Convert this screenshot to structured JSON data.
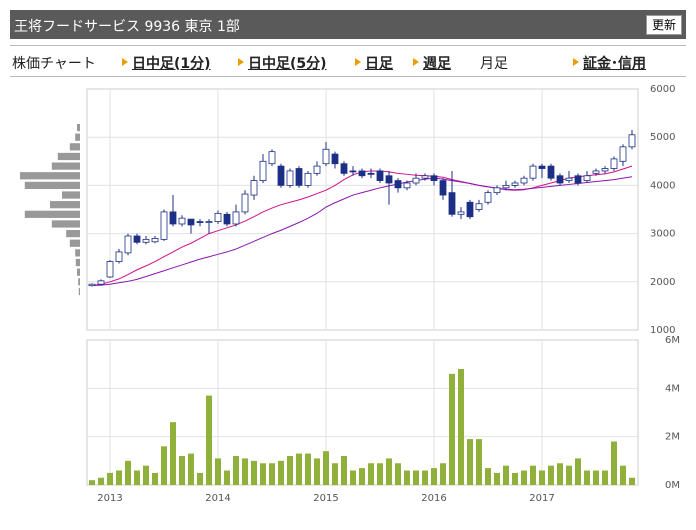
{
  "header": {
    "title": "王将フードサービス 9936 東京 1部",
    "button": "更新"
  },
  "tabs": [
    "株価チャート",
    "日中足(1分)",
    "日中足(5分)",
    "日足",
    "週足",
    "月足",
    "証金･信用"
  ],
  "chart_data": {
    "type": "candlestick",
    "categories": [
      null,
      null,
      "2013",
      null,
      null,
      null,
      null,
      null,
      null,
      null,
      null,
      null,
      null,
      null,
      "2014",
      null,
      null,
      null,
      null,
      null,
      null,
      null,
      null,
      null,
      null,
      null,
      "2015",
      null,
      null,
      null,
      null,
      null,
      null,
      null,
      null,
      null,
      null,
      null,
      "2016",
      null,
      null,
      null,
      null,
      null,
      null,
      null,
      null,
      null,
      null,
      null,
      "2017",
      null,
      null,
      null,
      null,
      null,
      null,
      null,
      null,
      null,
      null
    ],
    "open": [
      1920,
      1950,
      2100,
      2420,
      2600,
      2950,
      2820,
      2830,
      2880,
      3450,
      3200,
      3300,
      3250,
      3230,
      3250,
      3400,
      3200,
      3450,
      3800,
      4100,
      4450,
      4400,
      4000,
      4350,
      4000,
      4250,
      4450,
      4650,
      4450,
      4300,
      4300,
      4250,
      4300,
      4200,
      4100,
      3950,
      4050,
      4150,
      4200,
      4100,
      3850,
      3400,
      3650,
      3500,
      3650,
      3850,
      3950,
      4000,
      4050,
      4150,
      4400,
      4400,
      4200,
      4100,
      4200,
      4100,
      4250,
      4300,
      4350,
      4500,
      4800
    ],
    "high": [
      1970,
      2050,
      2450,
      2680,
      3000,
      3000,
      2950,
      2950,
      3500,
      3800,
      3380,
      3300,
      3300,
      3300,
      3480,
      3450,
      3600,
      3900,
      4200,
      4650,
      4750,
      4450,
      4350,
      4400,
      4300,
      4500,
      4900,
      4700,
      4500,
      4400,
      4350,
      4350,
      4350,
      4300,
      4150,
      4100,
      4250,
      4250,
      4250,
      4150,
      4300,
      3550,
      3700,
      3700,
      3900,
      4000,
      4100,
      4100,
      4200,
      4450,
      4450,
      4450,
      4250,
      4300,
      4250,
      4300,
      4350,
      4400,
      4600,
      4850,
      5150
    ],
    "low": [
      1900,
      1920,
      2080,
      2380,
      2550,
      2780,
      2780,
      2800,
      2850,
      3150,
      3150,
      3000,
      3150,
      3000,
      3200,
      3150,
      3150,
      3400,
      3700,
      4050,
      4400,
      3950,
      3950,
      3950,
      3950,
      4200,
      4400,
      4350,
      4200,
      4200,
      4150,
      4150,
      4050,
      3600,
      3850,
      3900,
      4000,
      4100,
      4000,
      3700,
      3350,
      3300,
      3300,
      3450,
      3600,
      3800,
      3900,
      3950,
      4000,
      4100,
      4150,
      4100,
      4000,
      4050,
      4000,
      4050,
      4200,
      4250,
      4300,
      4400,
      4750
    ],
    "close": [
      1950,
      2020,
      2420,
      2620,
      2950,
      2820,
      2880,
      2900,
      3450,
      3200,
      3320,
      3180,
      3230,
      3250,
      3420,
      3200,
      3450,
      3820,
      4100,
      4500,
      4700,
      4000,
      4300,
      4000,
      4250,
      4400,
      4750,
      4450,
      4250,
      4280,
      4200,
      4230,
      4100,
      4050,
      3950,
      4050,
      4150,
      4200,
      4100,
      3800,
      3400,
      3450,
      3350,
      3620,
      3850,
      3950,
      4000,
      4050,
      4150,
      4400,
      4350,
      4150,
      4050,
      4150,
      4050,
      4200,
      4300,
      4350,
      4550,
      4800,
      5050
    ],
    "up_color": "#ffffff",
    "down_color": "#1c2f86",
    "edge_color": "#1c2f86",
    "moving_averages": [
      {
        "color": "#d0108c",
        "values": [
          1920,
          1950,
          2000,
          2060,
          2150,
          2250,
          2330,
          2420,
          2520,
          2620,
          2720,
          2800,
          2900,
          3000,
          3060,
          3120,
          3180,
          3260,
          3350,
          3450,
          3530,
          3600,
          3650,
          3700,
          3760,
          3830,
          3900,
          4000,
          4120,
          4220,
          4280,
          4300,
          4300,
          4280,
          4250,
          4230,
          4210,
          4200,
          4190,
          4170,
          4120,
          4080,
          4040,
          4000,
          3970,
          3940,
          3910,
          3900,
          3910,
          3950,
          4000,
          4050,
          4100,
          4150,
          4180,
          4200,
          4220,
          4240,
          4280,
          4340,
          4400
        ]
      },
      {
        "color": "#8a16b0",
        "values": [
          1920,
          1930,
          1950,
          1980,
          2010,
          2050,
          2110,
          2170,
          2230,
          2290,
          2350,
          2410,
          2470,
          2520,
          2570,
          2620,
          2680,
          2760,
          2840,
          2920,
          3000,
          3070,
          3150,
          3230,
          3320,
          3420,
          3550,
          3640,
          3720,
          3800,
          3850,
          3900,
          3950,
          3990,
          4030,
          4070,
          4100,
          4130,
          4150,
          4130,
          4100,
          4070,
          4040,
          4000,
          3970,
          3940,
          3920,
          3910,
          3920,
          3940,
          3960,
          3980,
          4000,
          4020,
          4040,
          4060,
          4080,
          4100,
          4120,
          4150,
          4180
        ]
      }
    ],
    "ylim": [
      1000,
      6000
    ],
    "yticks": [
      1000,
      2000,
      3000,
      4000,
      5000,
      6000
    ],
    "grid": true,
    "volume": {
      "color": "#8fb03a",
      "values": [
        0.2,
        0.3,
        0.5,
        0.6,
        1.0,
        0.6,
        0.8,
        0.5,
        1.6,
        2.6,
        1.2,
        1.3,
        0.5,
        3.7,
        1.1,
        0.6,
        1.2,
        1.1,
        1.0,
        0.9,
        0.9,
        1.0,
        1.2,
        1.3,
        1.3,
        1.1,
        1.4,
        0.9,
        1.2,
        0.6,
        0.7,
        0.9,
        0.9,
        1.1,
        0.9,
        0.6,
        0.6,
        0.6,
        0.7,
        0.9,
        4.6,
        4.8,
        1.9,
        1.9,
        0.7,
        0.5,
        0.8,
        0.5,
        0.6,
        0.8,
        0.6,
        0.8,
        0.9,
        0.8,
        1.1,
        0.6,
        0.6,
        0.6,
        1.8,
        0.8,
        0.3
      ],
      "ylim": [
        0,
        6
      ],
      "yticks": [
        {
          "value": 0,
          "label": "0M"
        },
        {
          "value": 2,
          "label": "2M"
        },
        {
          "value": 4,
          "label": "4M"
        },
        {
          "value": 6,
          "label": "6M"
        }
      ]
    },
    "price_volume": {
      "color": "#999999",
      "levels": [
        5200,
        5000,
        4800,
        4600,
        4400,
        4200,
        4000,
        3800,
        3600,
        3400,
        3200,
        3000,
        2800,
        2600,
        2400,
        2200,
        2000,
        1800
      ],
      "values": [
        5,
        8,
        17,
        37,
        47,
        100,
        92,
        30,
        50,
        92,
        47,
        23,
        17,
        8,
        7,
        5,
        3,
        2
      ]
    }
  }
}
